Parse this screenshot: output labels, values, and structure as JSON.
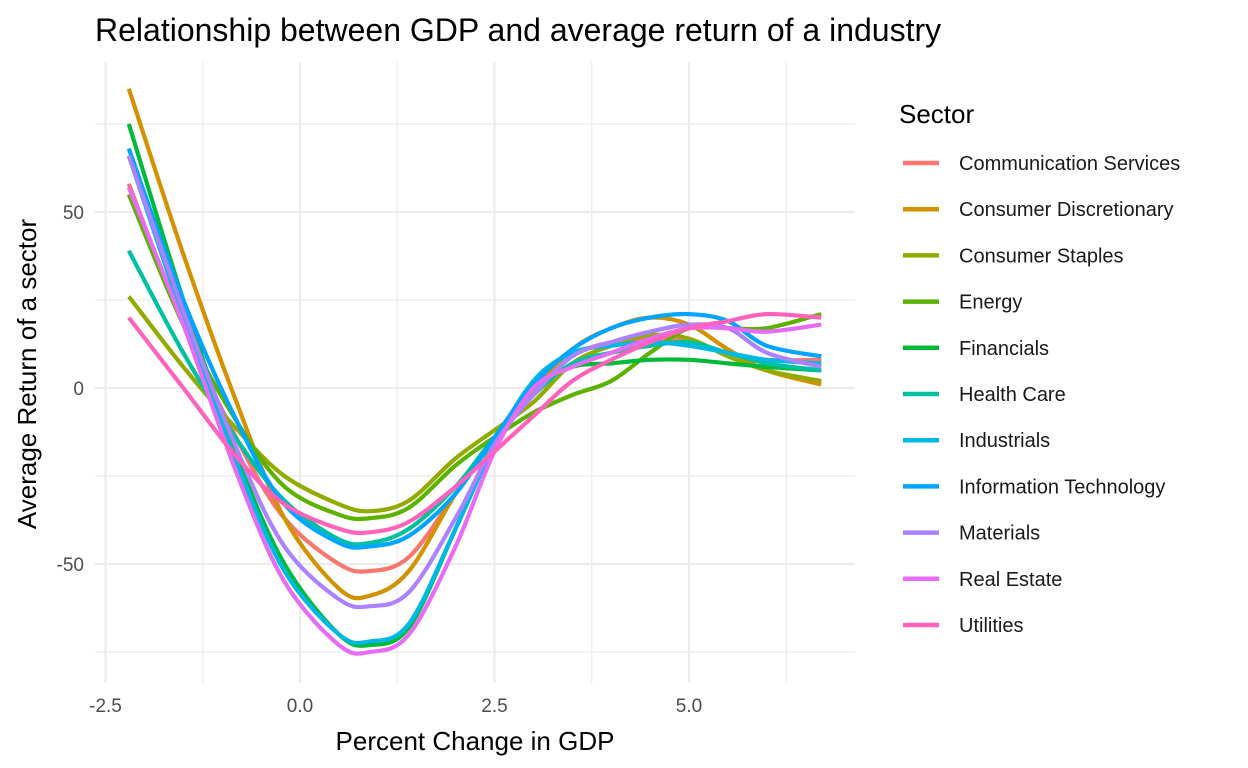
{
  "chart_data": {
    "type": "line",
    "title": "Relationship between GDP  and average return of a industry",
    "xlabel": "Percent Change in GDP",
    "ylabel": "Average Return of a sector",
    "xlim": [
      -2.5,
      7.0
    ],
    "ylim": [
      -85,
      92
    ],
    "x_ticks": [
      -2.5,
      0.0,
      2.5,
      5.0
    ],
    "x_tick_labels": [
      "-2.5",
      "0.0",
      "2.5",
      "5.0"
    ],
    "y_ticks": [
      -50,
      0,
      50
    ],
    "y_tick_labels": [
      "-50",
      "0",
      "50"
    ],
    "grid": true,
    "legend": {
      "title": "Sector",
      "position": "right"
    },
    "x": [
      -2.2,
      -1.5,
      -0.8,
      -0.2,
      0.5,
      0.9,
      1.4,
      2.0,
      2.5,
      3.0,
      3.5,
      4.0,
      4.5,
      5.0,
      5.5,
      6.0,
      6.7
    ],
    "series": [
      {
        "name": "Communication Services",
        "color": "#F8766D",
        "values": [
          58,
          18,
          -15,
          -37,
          -50,
          -52,
          -48,
          -30,
          -14,
          -2,
          9,
          13,
          14,
          13,
          10,
          8,
          8
        ]
      },
      {
        "name": "Consumer Discretionary",
        "color": "#D39200",
        "values": [
          85,
          38,
          -5,
          -37,
          -57,
          -59,
          -52,
          -30,
          -14,
          -1,
          11,
          17,
          20,
          18,
          11,
          5,
          1
        ]
      },
      {
        "name": "Consumer Staples",
        "color": "#93AA00",
        "values": [
          26,
          6,
          -12,
          -25,
          -33,
          -35,
          -32,
          -20,
          -12,
          -4,
          7,
          12,
          15,
          14,
          9,
          5,
          2
        ]
      },
      {
        "name": "Energy",
        "color": "#5BB300",
        "values": [
          55,
          18,
          -10,
          -28,
          -36,
          -37,
          -34,
          -22,
          -14,
          -7,
          -2,
          2,
          10,
          17,
          17,
          17,
          21
        ]
      },
      {
        "name": "Financials",
        "color": "#00BA38",
        "values": [
          75,
          25,
          -20,
          -50,
          -70,
          -73,
          -68,
          -40,
          -15,
          0,
          6,
          7,
          8,
          8,
          7,
          6,
          5
        ]
      },
      {
        "name": "Health Care",
        "color": "#00C19F",
        "values": [
          39,
          10,
          -15,
          -32,
          -43,
          -44,
          -40,
          -28,
          -14,
          -2,
          7,
          10,
          12,
          13,
          10,
          7,
          5
        ]
      },
      {
        "name": "Industrials",
        "color": "#00B9E3",
        "values": [
          66,
          20,
          -22,
          -52,
          -70,
          -72,
          -67,
          -40,
          -16,
          2,
          10,
          12,
          13,
          12,
          10,
          8,
          7
        ]
      },
      {
        "name": "Information Technology",
        "color": "#00A5FF",
        "values": [
          68,
          25,
          -10,
          -33,
          -44,
          -45,
          -42,
          -30,
          -14,
          1,
          11,
          17,
          20,
          21,
          19,
          12,
          9
        ]
      },
      {
        "name": "Materials",
        "color": "#AB82FF",
        "values": [
          66,
          22,
          -18,
          -45,
          -60,
          -62,
          -58,
          -37,
          -16,
          -2,
          9,
          13,
          16,
          18,
          17,
          10,
          6
        ]
      },
      {
        "name": "Real Estate",
        "color": "#E76BF3",
        "values": [
          57,
          18,
          -25,
          -55,
          -73,
          -75,
          -70,
          -45,
          -18,
          0,
          6,
          10,
          14,
          17,
          17,
          16,
          18
        ]
      },
      {
        "name": "Utilities",
        "color": "#FF62BC",
        "values": [
          20,
          0,
          -20,
          -33,
          -40,
          -41,
          -38,
          -28,
          -18,
          -8,
          2,
          8,
          13,
          17,
          19,
          21,
          20
        ]
      }
    ]
  }
}
